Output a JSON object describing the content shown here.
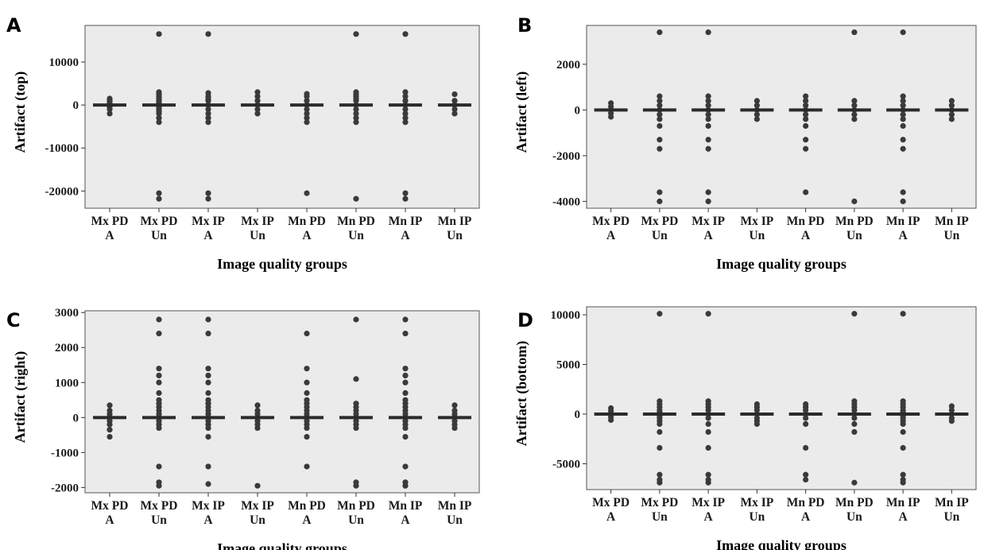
{
  "chart_data": [
    {
      "panel": "A",
      "type": "scatter",
      "xlabel": "Image quality groups",
      "ylabel": "Artifact (top)",
      "categories": [
        [
          "Mx PD",
          "A"
        ],
        [
          "Mx PD",
          "Un"
        ],
        [
          "Mx IP",
          "A"
        ],
        [
          "Mx IP",
          "Un"
        ],
        [
          "Mn PD",
          "A"
        ],
        [
          "Mn PD",
          "Un"
        ],
        [
          "Mn IP",
          "A"
        ],
        [
          "Mn IP",
          "Un"
        ]
      ],
      "ylim": [
        -24000,
        18500
      ],
      "yticks": [
        10000,
        0,
        -10000,
        -20000
      ],
      "ytick_labels": [
        "10000",
        "0",
        "-10000",
        "-20000"
      ],
      "grid": false,
      "medians": [
        0,
        0,
        0,
        0,
        0,
        0,
        0,
        0
      ],
      "points": [
        [
          1500,
          1000,
          500,
          0,
          -500,
          -1000,
          -2000
        ],
        [
          16500,
          3000,
          2500,
          2000,
          1500,
          1000,
          500,
          0,
          -500,
          -1000,
          -1500,
          -2000,
          -3000,
          -4000,
          -20500,
          -21800
        ],
        [
          16500,
          2800,
          2000,
          1500,
          1000,
          0,
          -1000,
          -2000,
          -3000,
          -4000,
          -20500,
          -21800
        ],
        [
          3000,
          2000,
          1000,
          0,
          -1000,
          -2000
        ],
        [
          2600,
          2000,
          1000,
          0,
          -1000,
          -2000,
          -3000,
          -4000,
          -20500
        ],
        [
          16500,
          3000,
          2500,
          2000,
          1500,
          1000,
          0,
          -1000,
          -2000,
          -3000,
          -4000,
          -21800
        ],
        [
          16500,
          3000,
          2000,
          1000,
          0,
          -1000,
          -2000,
          -3000,
          -4000,
          -20500,
          -21800
        ],
        [
          2500,
          1000,
          0,
          -1000,
          -2000
        ]
      ]
    },
    {
      "panel": "B",
      "type": "scatter",
      "xlabel": "Image quality groups",
      "ylabel": "Artifact (left)",
      "categories": [
        [
          "Mx PD",
          "A"
        ],
        [
          "Mx PD",
          "Un"
        ],
        [
          "Mx IP",
          "A"
        ],
        [
          "Mx IP",
          "Un"
        ],
        [
          "Mn PD",
          "A"
        ],
        [
          "Mn PD",
          "Un"
        ],
        [
          "Mn IP",
          "A"
        ],
        [
          "Mn IP",
          "Un"
        ]
      ],
      "ylim": [
        -4300,
        3700
      ],
      "yticks": [
        2000,
        0,
        -2000,
        -4000
      ],
      "ytick_labels": [
        "2000",
        "0",
        "-2000",
        "-4000"
      ],
      "grid": false,
      "medians": [
        0,
        0,
        0,
        0,
        0,
        0,
        0,
        0
      ],
      "points": [
        [
          300,
          150,
          0,
          -150,
          -300
        ],
        [
          3400,
          600,
          400,
          200,
          0,
          -200,
          -400,
          -700,
          -1300,
          -1700,
          -3600,
          -4000
        ],
        [
          3400,
          600,
          400,
          200,
          0,
          -200,
          -400,
          -700,
          -1300,
          -1700,
          -3600,
          -4000
        ],
        [
          400,
          200,
          0,
          -200,
          -400
        ],
        [
          600,
          400,
          200,
          0,
          -200,
          -400,
          -700,
          -1300,
          -1700,
          -3600
        ],
        [
          3400,
          400,
          200,
          0,
          -200,
          -400,
          -4000
        ],
        [
          3400,
          600,
          400,
          200,
          0,
          -200,
          -400,
          -700,
          -1300,
          -1700,
          -3600,
          -4000
        ],
        [
          400,
          200,
          0,
          -200,
          -400
        ]
      ]
    },
    {
      "panel": "C",
      "type": "scatter",
      "xlabel": "Image quality groups",
      "ylabel": "Artifact (right)",
      "categories": [
        [
          "Mx PD",
          "A"
        ],
        [
          "Mx PD",
          "Un"
        ],
        [
          "Mx IP",
          "A"
        ],
        [
          "Mx IP",
          "Un"
        ],
        [
          "Mn PD",
          "A"
        ],
        [
          "Mn PD",
          "Un"
        ],
        [
          "Mn IP",
          "A"
        ],
        [
          "Mn IP",
          "Un"
        ]
      ],
      "ylim": [
        -2150,
        3050
      ],
      "yticks": [
        3000,
        2000,
        1000,
        0,
        -1000,
        -2000
      ],
      "ytick_labels": [
        "3000",
        "2000",
        "1000",
        "0",
        "-1000",
        "-2000"
      ],
      "grid": false,
      "medians": [
        0,
        0,
        0,
        0,
        0,
        0,
        0,
        0
      ],
      "points": [
        [
          350,
          200,
          100,
          0,
          -100,
          -200,
          -350,
          -550
        ],
        [
          2800,
          2400,
          1400,
          1200,
          1000,
          700,
          500,
          400,
          300,
          200,
          100,
          0,
          -100,
          -200,
          -300,
          -1400,
          -1850,
          -1950
        ],
        [
          2800,
          2400,
          1400,
          1200,
          1000,
          700,
          500,
          400,
          300,
          200,
          100,
          0,
          -100,
          -200,
          -300,
          -550,
          -1400,
          -1900
        ],
        [
          350,
          200,
          100,
          0,
          -100,
          -200,
          -300,
          -1950
        ],
        [
          2400,
          1400,
          1000,
          700,
          500,
          400,
          300,
          200,
          100,
          0,
          -100,
          -200,
          -300,
          -550,
          -1400
        ],
        [
          2800,
          1100,
          400,
          300,
          200,
          100,
          0,
          -100,
          -200,
          -300,
          -1850,
          -1950
        ],
        [
          2800,
          2400,
          1400,
          1200,
          1000,
          700,
          500,
          400,
          300,
          200,
          100,
          0,
          -100,
          -200,
          -300,
          -550,
          -1400,
          -1850,
          -1950
        ],
        [
          350,
          200,
          100,
          0,
          -100,
          -200,
          -300
        ]
      ]
    },
    {
      "panel": "D",
      "type": "scatter",
      "xlabel": "Image quality groups",
      "ylabel": "Artifact (bottom)",
      "categories": [
        [
          "Mx PD",
          "A"
        ],
        [
          "Mx PD",
          "Un"
        ],
        [
          "Mx IP",
          "A"
        ],
        [
          "Mx IP",
          "Un"
        ],
        [
          "Mn PD",
          "A"
        ],
        [
          "Mn PD",
          "Un"
        ],
        [
          "Mn IP",
          "A"
        ],
        [
          "Mn IP",
          "Un"
        ]
      ],
      "ylim": [
        -7600,
        10800
      ],
      "yticks": [
        10000,
        5000,
        0,
        -5000
      ],
      "ytick_labels": [
        "10000",
        "5000",
        "0",
        "-5000"
      ],
      "grid": false,
      "medians": [
        0,
        0,
        0,
        0,
        0,
        0,
        0,
        0
      ],
      "points": [
        [
          600,
          300,
          0,
          -300,
          -600
        ],
        [
          10100,
          1300,
          1000,
          700,
          400,
          200,
          0,
          -200,
          -400,
          -700,
          -1000,
          -1800,
          -3400,
          -6100,
          -6600,
          -6900
        ],
        [
          10100,
          1300,
          1000,
          700,
          400,
          0,
          -400,
          -1000,
          -1800,
          -3400,
          -6100,
          -6600,
          -6900
        ],
        [
          1000,
          700,
          400,
          0,
          -400,
          -700,
          -1000
        ],
        [
          1000,
          700,
          400,
          0,
          -400,
          -1000,
          -3400,
          -6100,
          -6600
        ],
        [
          10100,
          1300,
          1000,
          700,
          400,
          0,
          -400,
          -1000,
          -1800,
          -6900
        ],
        [
          10100,
          1300,
          1000,
          700,
          400,
          200,
          0,
          -200,
          -400,
          -700,
          -1000,
          -1800,
          -3400,
          -6100,
          -6600,
          -6900
        ],
        [
          800,
          400,
          0,
          -400,
          -700
        ]
      ]
    }
  ]
}
